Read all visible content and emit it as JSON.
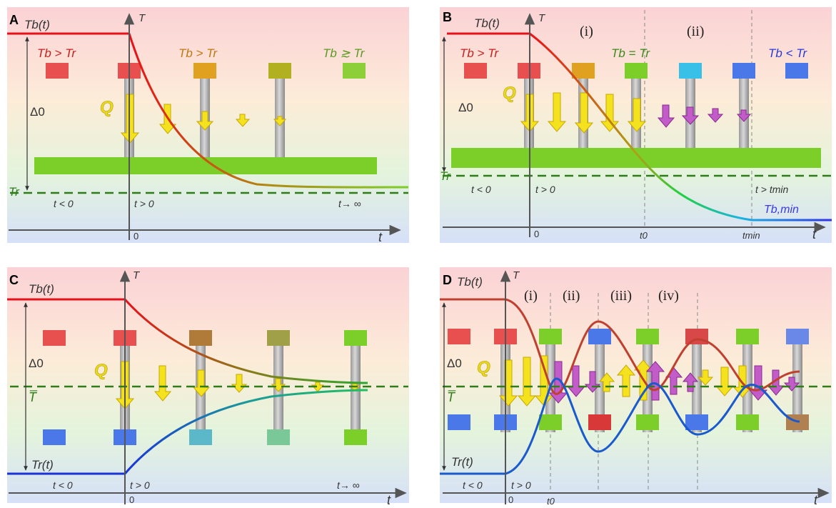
{
  "panels": [
    {
      "letter": "A",
      "curve_label": "Tb(t)",
      "y_axis": "T",
      "x_axis": "t",
      "origin": "0",
      "delta": "Δ0",
      "reservoir_label": "Tr",
      "heat": "Q",
      "relations": [
        "Tb > Tr",
        "Tb > Tr",
        "Tb ≳ Tr"
      ],
      "regions": [
        "t < 0",
        "t > 0",
        "t→ ∞"
      ]
    },
    {
      "letter": "B",
      "curve_label": "Tb(t)",
      "y_axis": "T",
      "x_axis": "t",
      "origin": "0",
      "delta": "Δ0",
      "reservoir_label": "Tr",
      "heat": "Q",
      "stages": [
        "(i)",
        "(ii)"
      ],
      "relations": [
        "Tb > Tr",
        "Tb = Tr",
        "Tb < Tr"
      ],
      "regions": [
        "t < 0",
        "t > 0",
        "t > tmin"
      ],
      "ticks": [
        "t0",
        "tmin"
      ],
      "min_label": "Tb,min"
    },
    {
      "letter": "C",
      "curve_label": "Tb(t)",
      "lower_label": "Tr(t)",
      "y_axis": "T",
      "x_axis": "t",
      "origin": "0",
      "delta": "Δ0",
      "mean": "T̅",
      "heat": "Q",
      "regions": [
        "t < 0",
        "t > 0",
        "t→ ∞"
      ]
    },
    {
      "letter": "D",
      "curve_label": "Tb(t)",
      "lower_label": "Tr(t)",
      "y_axis": "T",
      "x_axis": "t",
      "origin": "0",
      "delta": "Δ0",
      "mean": "T̅",
      "heat": "Q",
      "stages": [
        "(i)",
        "(ii)",
        "(iii)",
        "(iv)"
      ],
      "regions": [
        "t < 0",
        "t > 0"
      ],
      "ticks": [
        "t0"
      ]
    }
  ],
  "colors": {
    "hot": "#e8101a",
    "cold": "#1a32d8",
    "axis": "#555555",
    "reservoir": "#7ccf28",
    "mean_line": "#2e7d18",
    "heat_down": "#f5e21e",
    "heat_up": "#c25cc8"
  }
}
